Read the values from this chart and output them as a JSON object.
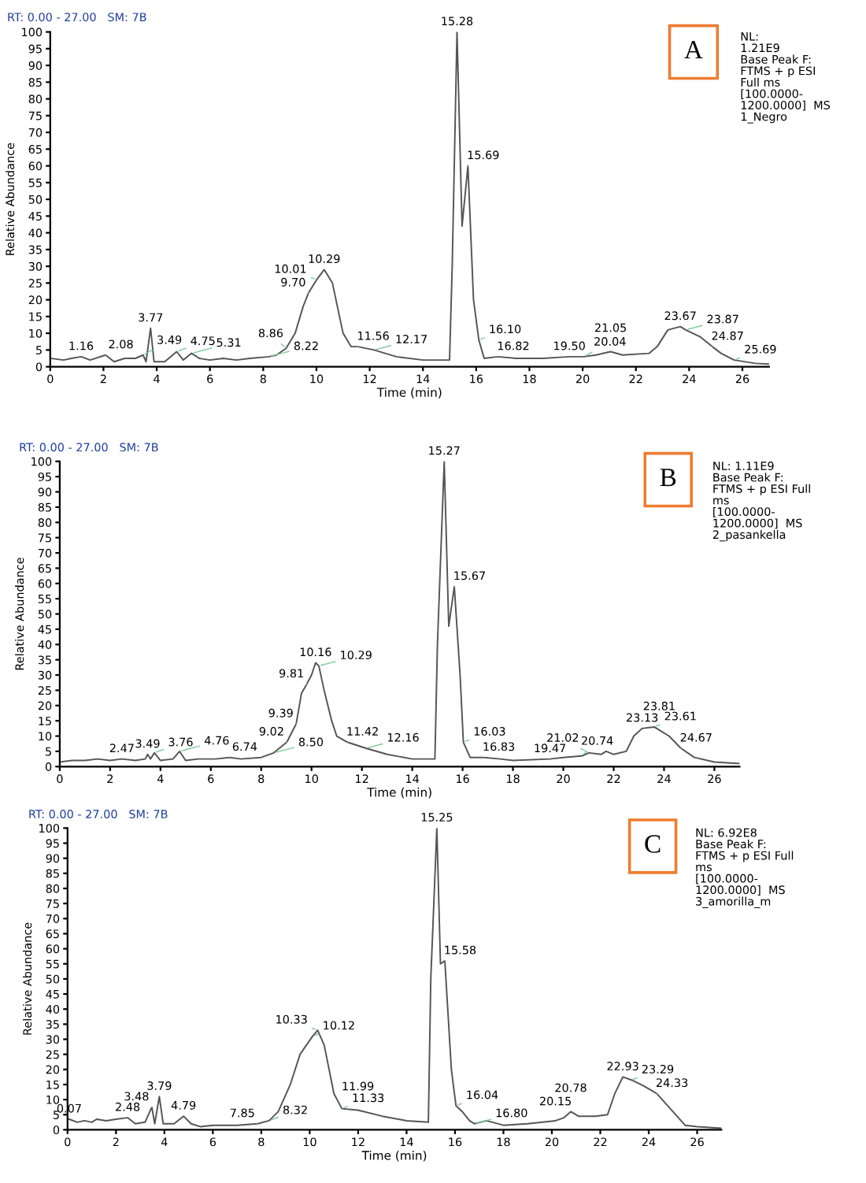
{
  "chart_data": [
    {
      "type": "line",
      "title": "A",
      "xlabel": "Time (min)",
      "ylabel": "Relative Abundance",
      "xlim": [
        0,
        27
      ],
      "xticks": [
        0,
        2,
        4,
        6,
        8,
        10,
        12,
        14,
        16,
        18,
        20,
        22,
        24,
        26
      ],
      "ylim": [
        0,
        100
      ],
      "yticks": [
        0,
        5,
        10,
        15,
        20,
        25,
        30,
        35,
        40,
        45,
        50,
        55,
        60,
        65,
        70,
        75,
        80,
        85,
        90,
        95,
        100
      ],
      "grid": false,
      "legend": false,
      "marker": "none",
      "line_style": "solid",
      "series": [
        {
          "color": "#555555",
          "x": [
            0,
            0.5,
            0.8,
            1.16,
            1.5,
            2.08,
            2.4,
            2.8,
            3.2,
            3.49,
            3.6,
            3.77,
            3.9,
            4.3,
            4.75,
            5.0,
            5.31,
            5.6,
            6.0,
            6.5,
            7.0,
            7.5,
            8.22,
            8.5,
            8.86,
            9.2,
            9.5,
            9.7,
            10.01,
            10.29,
            10.6,
            11.0,
            11.3,
            11.56,
            12.17,
            13,
            14,
            15.0,
            15.1,
            15.28,
            15.47,
            15.69,
            15.9,
            16.1,
            16.3,
            16.82,
            17.5,
            18.5,
            19.5,
            20.04,
            20.5,
            21.05,
            21.5,
            22.5,
            22.8,
            23.2,
            23.67,
            23.87,
            24.4,
            24.87,
            25.2,
            25.69,
            26.5,
            27
          ],
          "values": [
            2.5,
            2,
            2.5,
            3,
            2,
            3.5,
            1.5,
            2.5,
            2.5,
            3.5,
            1.5,
            11.5,
            1.5,
            1.5,
            4.5,
            2,
            4,
            2.5,
            2,
            2.5,
            2,
            2.5,
            3,
            3.5,
            5.5,
            10,
            18,
            22,
            26,
            29,
            25,
            10,
            6,
            6,
            5,
            3,
            2,
            2,
            30,
            100,
            42,
            60,
            20,
            8,
            2.5,
            3,
            2.5,
            2.5,
            3,
            3,
            3.5,
            4.5,
            3.5,
            4,
            6,
            11,
            12,
            11,
            9,
            6,
            4,
            2,
            1,
            0.8
          ]
        }
      ],
      "annotations": [
        "RT: 0.00 - 27.00   SM: 7B",
        "NL:\n1.21E9\nBase Peak F:\nFTMS + p ESI\nFull ms\n[100.0000-\n1200.0000]  MS\n1_Negro",
        {
          "text": "1.16",
          "x": 1.16,
          "y": 3
        },
        {
          "text": "2.08",
          "x": 2.08,
          "y": 3.5
        },
        {
          "text": "3.49",
          "x": 3.49,
          "y": 3.5
        },
        {
          "text": "3.77",
          "x": 3.77,
          "y": 11.5
        },
        {
          "text": "4.75",
          "x": 4.75,
          "y": 4.5
        },
        {
          "text": "5.31",
          "x": 5.31,
          "y": 4
        },
        {
          "text": "8.22",
          "x": 8.22,
          "y": 3
        },
        {
          "text": "8.86",
          "x": 8.86,
          "y": 5.5
        },
        {
          "text": "9.70",
          "x": 9.7,
          "y": 22
        },
        {
          "text": "10.01",
          "x": 10.01,
          "y": 26
        },
        {
          "text": "10.29",
          "x": 10.29,
          "y": 29
        },
        {
          "text": "11.56",
          "x": 11.56,
          "y": 6
        },
        {
          "text": "12.17",
          "x": 12.17,
          "y": 5
        },
        {
          "text": "15.28",
          "x": 15.28,
          "y": 100
        },
        {
          "text": "15.69",
          "x": 15.69,
          "y": 60
        },
        {
          "text": "16.10",
          "x": 16.1,
          "y": 8
        },
        {
          "text": "16.82",
          "x": 16.82,
          "y": 3
        },
        {
          "text": "19.50",
          "x": 19.5,
          "y": 3
        },
        {
          "text": "20.04",
          "x": 20.04,
          "y": 3
        },
        {
          "text": "21.05",
          "x": 21.05,
          "y": 4.5
        },
        {
          "text": "23.67",
          "x": 23.67,
          "y": 12
        },
        {
          "text": "23.87",
          "x": 23.87,
          "y": 11
        },
        {
          "text": "24.87",
          "x": 24.87,
          "y": 6
        },
        {
          "text": "25.69",
          "x": 25.69,
          "y": 2
        }
      ]
    },
    {
      "type": "line",
      "title": "B",
      "xlabel": "Time (min)",
      "ylabel": "Relative Abundance",
      "xlim": [
        0,
        27
      ],
      "xticks": [
        0,
        2,
        4,
        6,
        8,
        10,
        12,
        14,
        16,
        18,
        20,
        22,
        24,
        26
      ],
      "ylim": [
        0,
        100
      ],
      "yticks": [
        0,
        5,
        10,
        15,
        20,
        25,
        30,
        35,
        40,
        45,
        50,
        55,
        60,
        65,
        70,
        75,
        80,
        85,
        90,
        95,
        100
      ],
      "grid": false,
      "legend": false,
      "marker": "none",
      "line_style": "solid",
      "series": [
        {
          "color": "#555555",
          "x": [
            0,
            0.5,
            1,
            1.5,
            2,
            2.47,
            3,
            3.4,
            3.49,
            3.6,
            3.76,
            4,
            4.5,
            4.76,
            5,
            5.5,
            6.2,
            6.74,
            7.2,
            8,
            8.5,
            9.02,
            9.39,
            9.6,
            9.81,
            10.0,
            10.16,
            10.29,
            10.5,
            10.8,
            11.0,
            11.42,
            12.16,
            13,
            14,
            14.9,
            15.0,
            15.27,
            15.45,
            15.67,
            15.9,
            16.03,
            16.3,
            16.83,
            17.5,
            18,
            19.47,
            20.0,
            20.74,
            21.02,
            21.5,
            21.7,
            22.0,
            22.5,
            22.8,
            23.13,
            23.61,
            23.81,
            24.2,
            24.67,
            25.2,
            26,
            27
          ],
          "values": [
            1.5,
            2,
            2,
            2.5,
            2,
            2.5,
            2,
            2.5,
            4,
            2.5,
            4.5,
            2,
            2.5,
            5,
            2,
            2.5,
            2.5,
            3,
            2.5,
            3,
            4.5,
            8,
            14,
            24,
            27,
            30,
            34,
            33,
            25,
            15,
            10,
            8,
            6,
            4,
            2.5,
            2.5,
            40,
            100,
            46,
            59,
            30,
            8,
            3,
            3,
            2.5,
            2,
            2.5,
            3,
            3.5,
            4.5,
            4,
            5,
            4,
            5,
            10,
            12.5,
            13,
            12,
            10,
            6,
            3,
            1.5,
            1
          ]
        }
      ],
      "annotations": [
        "RT: 0.00 - 27.00   SM: 7B",
        "NL: 1.11E9\nBase Peak F:\nFTMS + p ESI Full\nms\n[100.0000-\n1200.0000]  MS\n2_pasankella",
        {
          "text": "2.47",
          "x": 2.47,
          "y": 2.5
        },
        {
          "text": "3.49",
          "x": 3.49,
          "y": 4
        },
        {
          "text": "3.76",
          "x": 3.76,
          "y": 4.5
        },
        {
          "text": "4.76",
          "x": 4.76,
          "y": 5
        },
        {
          "text": "6.74",
          "x": 6.74,
          "y": 3
        },
        {
          "text": "8.50",
          "x": 8.5,
          "y": 4.5
        },
        {
          "text": "9.02",
          "x": 9.02,
          "y": 8
        },
        {
          "text": "9.39",
          "x": 9.39,
          "y": 14
        },
        {
          "text": "9.81",
          "x": 9.81,
          "y": 27
        },
        {
          "text": "10.16",
          "x": 10.16,
          "y": 34
        },
        {
          "text": "10.29",
          "x": 10.29,
          "y": 33
        },
        {
          "text": "11.42",
          "x": 11.42,
          "y": 8
        },
        {
          "text": "12.16",
          "x": 12.16,
          "y": 6
        },
        {
          "text": "15.27",
          "x": 15.27,
          "y": 100
        },
        {
          "text": "15.67",
          "x": 15.67,
          "y": 59
        },
        {
          "text": "16.03",
          "x": 16.03,
          "y": 8
        },
        {
          "text": "16.83",
          "x": 16.83,
          "y": 3
        },
        {
          "text": "19.47",
          "x": 19.47,
          "y": 2.5
        },
        {
          "text": "20.74",
          "x": 20.74,
          "y": 3.5
        },
        {
          "text": "21.02",
          "x": 21.02,
          "y": 4.5
        },
        {
          "text": "23.13",
          "x": 23.13,
          "y": 12.5
        },
        {
          "text": "23.61",
          "x": 23.61,
          "y": 13
        },
        {
          "text": "23.81",
          "x": 23.81,
          "y": 12
        },
        {
          "text": "24.67",
          "x": 24.67,
          "y": 6
        }
      ]
    },
    {
      "type": "line",
      "title": "C",
      "xlabel": "Time (min)",
      "ylabel": "Relative Abundance",
      "xlim": [
        0,
        27
      ],
      "xticks": [
        0,
        2,
        4,
        6,
        8,
        10,
        12,
        14,
        16,
        18,
        20,
        22,
        24,
        26
      ],
      "ylim": [
        0,
        100
      ],
      "yticks": [
        0,
        5,
        10,
        15,
        20,
        25,
        30,
        35,
        40,
        45,
        50,
        55,
        60,
        65,
        70,
        75,
        80,
        85,
        90,
        95,
        100
      ],
      "grid": false,
      "legend": false,
      "marker": "none",
      "line_style": "solid",
      "series": [
        {
          "color": "#555555",
          "x": [
            0,
            0.07,
            0.4,
            0.7,
            1.0,
            1.2,
            1.6,
            2.0,
            2.48,
            2.8,
            3.2,
            3.48,
            3.6,
            3.79,
            3.95,
            4.4,
            4.79,
            5.1,
            5.5,
            6.0,
            7.0,
            7.85,
            8.32,
            8.7,
            9.2,
            9.6,
            10.12,
            10.33,
            10.6,
            11.0,
            11.33,
            11.99,
            13,
            14,
            14.9,
            15.0,
            15.25,
            15.4,
            15.58,
            15.85,
            16.04,
            16.3,
            16.6,
            16.8,
            17.3,
            18,
            19,
            20.15,
            20.5,
            20.78,
            21.1,
            21.8,
            22.3,
            22.6,
            22.93,
            23.29,
            23.8,
            24.33,
            25,
            25.5,
            26,
            27
          ],
          "values": [
            3.5,
            3.5,
            2.5,
            3,
            2.5,
            3.5,
            3,
            3.5,
            4,
            2,
            2.5,
            7.5,
            2,
            11,
            2,
            2,
            4.5,
            2,
            1,
            1.5,
            1.5,
            2,
            3,
            6,
            15,
            25,
            31,
            33,
            28,
            12,
            7,
            6.5,
            4.5,
            3,
            2.5,
            50,
            100,
            55,
            56,
            20,
            8,
            6,
            3,
            2,
            3,
            1.5,
            2,
            3,
            4,
            6,
            4.5,
            4.5,
            5,
            12,
            17.5,
            16.5,
            14.5,
            12,
            6,
            1.5,
            1,
            0.5
          ]
        }
      ],
      "annotations": [
        "RT: 0.00 - 27.00   SM: 7B",
        "NL: 6.92E8\nBase Peak F:\nFTMS + p ESI Full\nms\n[100.0000-\n1200.0000]  MS\n3_amorilla_m",
        {
          "text": "0.07",
          "x": 0.07,
          "y": 3.5
        },
        {
          "text": "2.48",
          "x": 2.48,
          "y": 4
        },
        {
          "text": "3.48",
          "x": 3.48,
          "y": 7.5
        },
        {
          "text": "3.79",
          "x": 3.79,
          "y": 11
        },
        {
          "text": "4.79",
          "x": 4.79,
          "y": 4.5
        },
        {
          "text": "7.85",
          "x": 7.85,
          "y": 2
        },
        {
          "text": "8.32",
          "x": 8.32,
          "y": 3
        },
        {
          "text": "10.12",
          "x": 10.12,
          "y": 31
        },
        {
          "text": "10.33",
          "x": 10.33,
          "y": 33
        },
        {
          "text": "11.33",
          "x": 11.33,
          "y": 7
        },
        {
          "text": "11.99",
          "x": 11.99,
          "y": 6.5
        },
        {
          "text": "15.25",
          "x": 15.25,
          "y": 100
        },
        {
          "text": "15.58",
          "x": 15.58,
          "y": 56
        },
        {
          "text": "16.04",
          "x": 16.04,
          "y": 8
        },
        {
          "text": "16.80",
          "x": 16.8,
          "y": 2
        },
        {
          "text": "20.15",
          "x": 20.15,
          "y": 3
        },
        {
          "text": "20.78",
          "x": 20.78,
          "y": 6
        },
        {
          "text": "22.93",
          "x": 22.93,
          "y": 17.5
        },
        {
          "text": "23.29",
          "x": 23.29,
          "y": 16.5
        },
        {
          "text": "24.33",
          "x": 24.33,
          "y": 12
        }
      ]
    }
  ]
}
